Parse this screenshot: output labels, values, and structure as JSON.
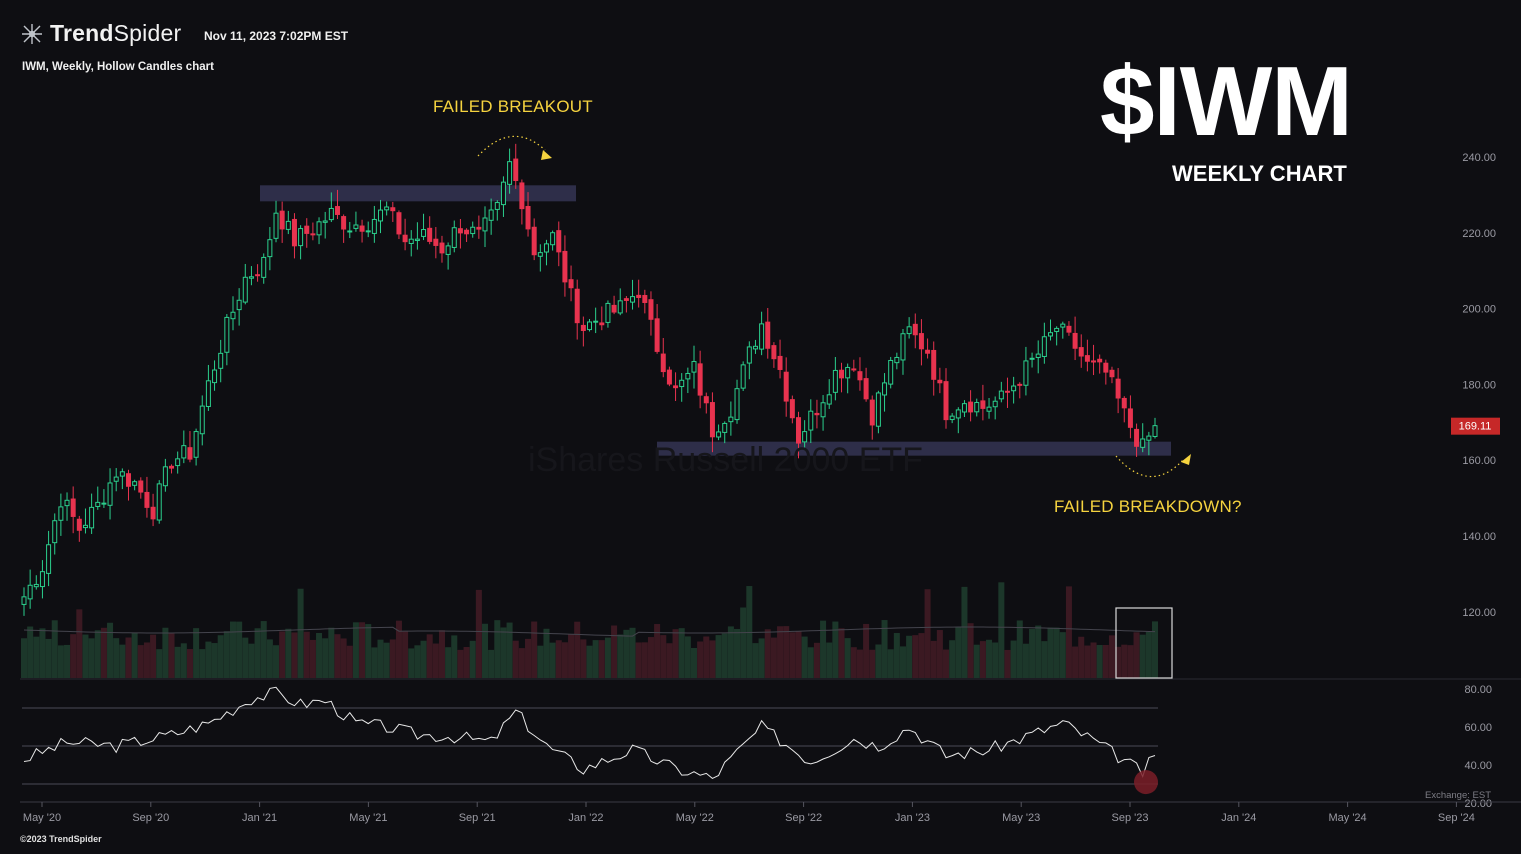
{
  "header": {
    "brand_strong": "Trend",
    "brand_light": "Spider",
    "timestamp": "Nov 11, 2023 7:02PM EST",
    "chart_descriptor": "IWM, Weekly, Hollow Candles chart",
    "watermark": "iShares Russell 2000 ETF"
  },
  "overlay": {
    "ticker_title": "$IWM",
    "ticker_subtitle": "WEEKLY CHART",
    "annotation_top": "FAILED BREAKOUT",
    "annotation_bottom": "FAILED BREAKDOWN?"
  },
  "footer": {
    "copyright": "©2023 TrendSpider",
    "exchange": "Exchange: EST"
  },
  "colors": {
    "background": "#0e0e12",
    "up": "#2bcf8d",
    "down": "#e8334f",
    "zone": "#3a3a5c",
    "annotation": "#f5d33f",
    "rsi_line": "#e8e8e8",
    "last_price_badge": "#c62828"
  },
  "chart_data": [
    {
      "type": "candlestick",
      "y_axis_ticks": [
        "240.00",
        "220.00",
        "200.00",
        "180.00",
        "160.00",
        "140.00",
        "120.00"
      ],
      "ylim": [
        100,
        250
      ],
      "x_axis_ticks": [
        "May '20",
        "Sep '20",
        "Jan '21",
        "May '21",
        "Sep '21",
        "Jan '22",
        "May '22",
        "Sep '22",
        "Jan '23",
        "May '23",
        "Sep '23",
        "Jan '24",
        "May '24",
        "Sep '24"
      ],
      "last_price": "169.11",
      "resistance_zone": [
        228,
        232
      ],
      "support_zone": [
        163,
        167
      ],
      "close_waypoints": [
        [
          "2020-05-01",
          124
        ],
        [
          "2020-05-22",
          132
        ],
        [
          "2020-06-12",
          150
        ],
        [
          "2020-07-03",
          142
        ],
        [
          "2020-07-24",
          148
        ],
        [
          "2020-08-14",
          157
        ],
        [
          "2020-09-04",
          154
        ],
        [
          "2020-09-25",
          147
        ],
        [
          "2020-10-16",
          160
        ],
        [
          "2020-11-06",
          162
        ],
        [
          "2020-11-27",
          180
        ],
        [
          "2020-12-18",
          195
        ],
        [
          "2021-01-08",
          208
        ],
        [
          "2021-01-29",
          212
        ],
        [
          "2021-02-12",
          226
        ],
        [
          "2021-03-05",
          218
        ],
        [
          "2021-03-26",
          221
        ],
        [
          "2021-04-16",
          225
        ],
        [
          "2021-05-07",
          222
        ],
        [
          "2021-05-28",
          223
        ],
        [
          "2021-06-18",
          226
        ],
        [
          "2021-07-09",
          218
        ],
        [
          "2021-07-30",
          219
        ],
        [
          "2021-08-20",
          216
        ],
        [
          "2021-09-10",
          222
        ],
        [
          "2021-10-01",
          219
        ],
        [
          "2021-10-22",
          226
        ],
        [
          "2021-11-05",
          238
        ],
        [
          "2021-11-19",
          229
        ],
        [
          "2021-12-03",
          215
        ],
        [
          "2021-12-24",
          219
        ],
        [
          "2022-01-14",
          203
        ],
        [
          "2022-01-28",
          195
        ],
        [
          "2022-02-18",
          198
        ],
        [
          "2022-03-11",
          200
        ],
        [
          "2022-04-01",
          205
        ],
        [
          "2022-04-22",
          190
        ],
        [
          "2022-05-13",
          178
        ],
        [
          "2022-06-03",
          184
        ],
        [
          "2022-06-24",
          168
        ],
        [
          "2022-07-15",
          174
        ],
        [
          "2022-08-05",
          188
        ],
        [
          "2022-08-19",
          196
        ],
        [
          "2022-09-09",
          184
        ],
        [
          "2022-09-30",
          166
        ],
        [
          "2022-10-21",
          174
        ],
        [
          "2022-11-11",
          183
        ],
        [
          "2022-12-02",
          186
        ],
        [
          "2022-12-23",
          172
        ],
        [
          "2023-01-13",
          185
        ],
        [
          "2023-02-03",
          194
        ],
        [
          "2023-02-24",
          189
        ],
        [
          "2023-03-17",
          173
        ],
        [
          "2023-04-07",
          176
        ],
        [
          "2023-04-28",
          174
        ],
        [
          "2023-05-19",
          176
        ],
        [
          "2023-06-09",
          182
        ],
        [
          "2023-06-30",
          188
        ],
        [
          "2023-07-21",
          195
        ],
        [
          "2023-08-11",
          190
        ],
        [
          "2023-08-25",
          185
        ],
        [
          "2023-09-15",
          183
        ],
        [
          "2023-10-06",
          172
        ],
        [
          "2023-10-27",
          163
        ],
        [
          "2023-11-10",
          169.11
        ]
      ]
    },
    {
      "type": "line",
      "name": "RSI",
      "y_axis_ticks": [
        "80.00",
        "60.00",
        "40.00",
        "20.00"
      ],
      "ylim": [
        20,
        80
      ],
      "reference_lines": [
        70,
        50,
        30
      ],
      "values_waypoints": [
        [
          "2020-05-01",
          43
        ],
        [
          "2020-06-19",
          52
        ],
        [
          "2020-08-14",
          50
        ],
        [
          "2020-10-16",
          56
        ],
        [
          "2020-11-27",
          62
        ],
        [
          "2021-01-15",
          75
        ],
        [
          "2021-02-12",
          78
        ],
        [
          "2021-03-12",
          72
        ],
        [
          "2021-04-09",
          74
        ],
        [
          "2021-05-14",
          62
        ],
        [
          "2021-06-18",
          60
        ],
        [
          "2021-07-23",
          56
        ],
        [
          "2021-09-03",
          55
        ],
        [
          "2021-10-15",
          52
        ],
        [
          "2021-11-12",
          68
        ],
        [
          "2021-12-17",
          50
        ],
        [
          "2022-01-28",
          38
        ],
        [
          "2022-03-25",
          48
        ],
        [
          "2022-05-13",
          38
        ],
        [
          "2022-06-24",
          33
        ],
        [
          "2022-08-19",
          60
        ],
        [
          "2022-10-14",
          42
        ],
        [
          "2022-12-02",
          54
        ],
        [
          "2022-12-30",
          50
        ],
        [
          "2023-02-03",
          60
        ],
        [
          "2023-03-17",
          45
        ],
        [
          "2023-05-05",
          48
        ],
        [
          "2023-07-28",
          62
        ],
        [
          "2023-09-01",
          53
        ],
        [
          "2023-10-27",
          36
        ],
        [
          "2023-11-10",
          45
        ]
      ]
    }
  ]
}
